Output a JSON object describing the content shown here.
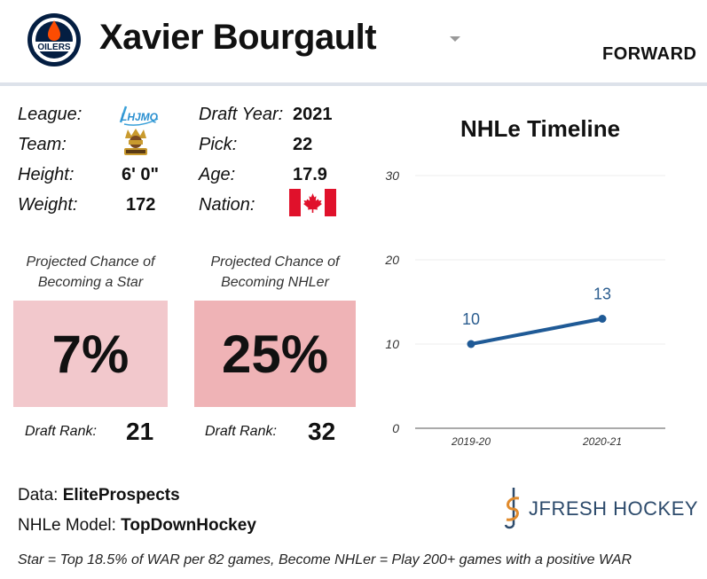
{
  "header": {
    "team_logo_text": "OILERS",
    "player_name": "Xavier Bourgault",
    "position": "FORWARD"
  },
  "info": {
    "league_label": "League:",
    "league_logo_text": "LHJMQ",
    "team_label": "Team:",
    "height_label": "Height:",
    "height_value": "6' 0\"",
    "weight_label": "Weight:",
    "weight_value": "172",
    "draft_year_label": "Draft Year:",
    "draft_year_value": "2021",
    "pick_label": "Pick:",
    "pick_value": "22",
    "age_label": "Age:",
    "age_value": "17.9",
    "nation_label": "Nation:"
  },
  "star": {
    "title": "Projected Chance of Becoming a Star",
    "value": "7%",
    "rank_label": "Draft Rank:",
    "rank_value": "21",
    "color": "#f2c8cc"
  },
  "nhler": {
    "title": "Projected Chance of Becoming NHLer",
    "value": "25%",
    "rank_label": "Draft Rank:",
    "rank_value": "32",
    "color": "#efb3b6"
  },
  "chart_data": {
    "type": "line",
    "title": "NHLe Timeline",
    "categories": [
      "2019-20",
      "2020-21"
    ],
    "values": [
      10,
      13
    ],
    "ylim": [
      0,
      30
    ],
    "yticks": [
      0,
      10,
      20,
      30
    ],
    "xlabel": "",
    "ylabel": "",
    "line_color": "#1f5a96",
    "label_color": "#2b5d8f"
  },
  "footer": {
    "data_label": "Data:",
    "data_value": "EliteProspects",
    "model_label": "NHLe Model:",
    "model_value": "TopDownHockey",
    "footnote": "Star = Top 18.5% of WAR per 82 games, Become NHLer = Play 200+ games with a positive WAR",
    "brand": "JFRESH HOCKEY"
  },
  "colors": {
    "oilers_blue": "#041e42",
    "oilers_orange": "#fc4c02",
    "canada_red": "#e0112b"
  }
}
